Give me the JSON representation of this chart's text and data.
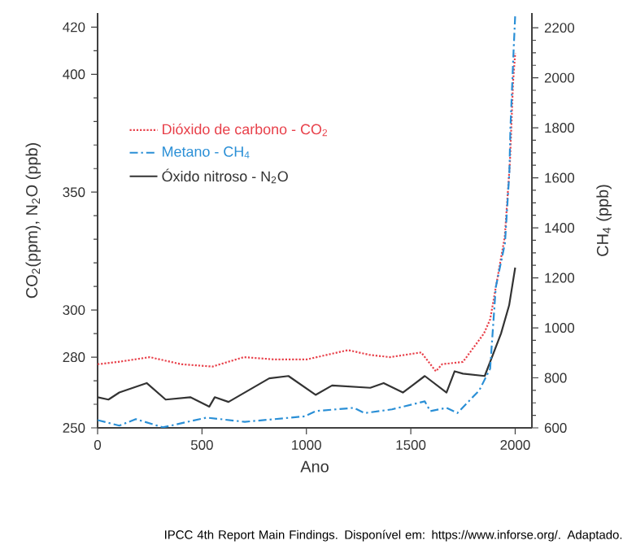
{
  "chart_data": {
    "type": "line",
    "xlabel": "Ano",
    "ylabel": "CO$_{2}$(ppm), N$_{2}$O (ppb)",
    "y2label": "CH$_{4}$ (ppb)",
    "xlim": [
      0,
      2080
    ],
    "xticks": [
      0,
      500,
      1000,
      1500,
      2000
    ],
    "ylim": [
      250,
      426
    ],
    "yticks": [
      250,
      {
        "value": 260,
        "label": null
      },
      {
        "value": 270,
        "label": null
      },
      280,
      {
        "value": 290,
        "label": null
      },
      300,
      {
        "value": 310,
        "label": null
      },
      {
        "value": 320,
        "label": null
      },
      {
        "value": 330,
        "label": null
      },
      {
        "value": 340,
        "label": null
      },
      350,
      {
        "value": 360,
        "label": null
      },
      {
        "value": 370,
        "label": null
      },
      {
        "value": 380,
        "label": null
      },
      {
        "value": 390,
        "label": null
      },
      400,
      {
        "value": 410,
        "label": null
      },
      420
    ],
    "y2lim": [
      600,
      2259
    ],
    "y2ticks": [
      600,
      {
        "value": 650,
        "label": null
      },
      {
        "value": 700,
        "label": null
      },
      {
        "value": 750,
        "label": null
      },
      800,
      {
        "value": 850,
        "label": null
      },
      {
        "value": 900,
        "label": null
      },
      {
        "value": 950,
        "label": null
      },
      1000,
      {
        "value": 1050,
        "label": null
      },
      {
        "value": 1100,
        "label": null
      },
      {
        "value": 1150,
        "label": null
      },
      1200,
      {
        "value": 1250,
        "label": null
      },
      {
        "value": 1300,
        "label": null
      },
      {
        "value": 1350,
        "label": null
      },
      1400,
      {
        "value": 1450,
        "label": null
      },
      {
        "value": 1500,
        "label": null
      },
      {
        "value": 1550,
        "label": null
      },
      1600,
      {
        "value": 1650,
        "label": null
      },
      {
        "value": 1700,
        "label": null
      },
      {
        "value": 1750,
        "label": null
      },
      1800,
      {
        "value": 1850,
        "label": null
      },
      {
        "value": 1900,
        "label": null
      },
      {
        "value": 1950,
        "label": null
      },
      2000,
      {
        "value": 2050,
        "label": null
      },
      {
        "value": 2100,
        "label": null
      },
      {
        "value": 2150,
        "label": null
      },
      2200
    ],
    "legend": "top left",
    "marker": "none",
    "series": [
      {
        "name": "Dióxido de carbono - CO$_{2}$",
        "color": "#e8404a",
        "line_style": "dotted",
        "x": [
          0,
          100,
          250,
          400,
          550,
          700,
          850,
          1000,
          1150,
          1200,
          1300,
          1400,
          1550,
          1620,
          1650,
          1750,
          1800,
          1850,
          1880,
          1910,
          1950,
          1975,
          1990,
          2000
        ],
        "values": [
          277,
          278,
          280,
          277,
          276,
          280,
          279,
          279,
          282,
          283,
          281,
          280,
          282,
          274,
          277,
          278,
          284,
          290,
          296,
          311,
          331,
          363,
          397,
          409
        ]
      },
      {
        "name": "Metano - CH$_{4}$",
        "color": "#2a8fd6",
        "line_style": "dashdot",
        "axis": "y2",
        "x": [
          0,
          104,
          183,
          313,
          522,
          705,
          992,
          1044,
          1227,
          1279,
          1410,
          1567,
          1593,
          1671,
          1723,
          1828,
          1880,
          1907,
          1951,
          1972,
          1977,
          1992,
          2000
        ],
        "values": [
          631,
          609,
          635,
          602,
          641,
          624,
          646,
          667,
          680,
          659,
          674,
          706,
          667,
          680,
          659,
          750,
          837,
          1162,
          1339,
          1620,
          1796,
          2103,
          2250
        ]
      },
      {
        "name": "Óxido nitroso - N$_{2}$O",
        "color": "#333333",
        "line_style": "solid",
        "x": [
          0,
          52,
          104,
          235,
          326,
          444,
          535,
          561,
          627,
          822,
          914,
          1044,
          1123,
          1306,
          1370,
          1462,
          1567,
          1671,
          1710,
          1750,
          1854,
          1932,
          1971,
          2000
        ],
        "values": [
          263,
          262,
          265,
          269,
          262,
          263,
          259,
          263,
          261,
          271,
          272,
          264,
          268,
          267,
          269,
          265,
          272,
          265,
          274,
          273,
          272,
          290,
          302,
          318
        ]
      }
    ],
    "annotations": [
      "IPCC 4th Report Main Findings. Disponível em: https://www.inforse.org/. Adaptado."
    ]
  }
}
